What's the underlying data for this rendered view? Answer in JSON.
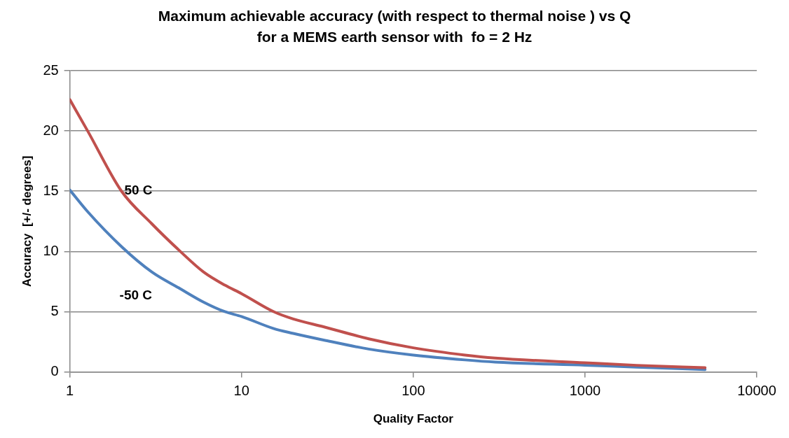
{
  "chart_data": {
    "type": "line",
    "title": "Maximum achievable accuracy (with respect to thermal noise ) vs Q\nfor a MEMS earth sensor with  fo = 2 Hz",
    "xlabel": "Quality Factor",
    "ylabel": "Accuracy  [+/- degrees]",
    "x": [
      1,
      1.27,
      2,
      3,
      4.4,
      6,
      8,
      10,
      15.4,
      20,
      30,
      55,
      100,
      200,
      300,
      1000,
      2000,
      5000
    ],
    "series": [
      {
        "name": "50 C",
        "color": "#c0504d",
        "values": [
          22.6,
          20,
          15,
          12.3,
          10,
          8.3,
          7.2,
          6.5,
          5,
          4.4,
          3.75,
          2.75,
          2.0,
          1.4,
          1.15,
          0.76,
          0.55,
          0.35
        ]
      },
      {
        "name": "-50 C",
        "color": "#4f81bd",
        "values": [
          15.1,
          13.3,
          10.4,
          8.3,
          6.9,
          5.8,
          5,
          4.6,
          3.6,
          3.2,
          2.65,
          1.9,
          1.4,
          1.0,
          0.82,
          0.56,
          0.4,
          0.2
        ]
      }
    ],
    "log": "x",
    "xlim": [
      1,
      10000
    ],
    "xticks": [
      1,
      10,
      100,
      1000,
      10000
    ],
    "ylim": [
      0,
      25
    ],
    "yticks": [
      0,
      5,
      10,
      15,
      20,
      25
    ],
    "grid": "y",
    "legend": false,
    "marker": "none",
    "line_style": "solid"
  }
}
